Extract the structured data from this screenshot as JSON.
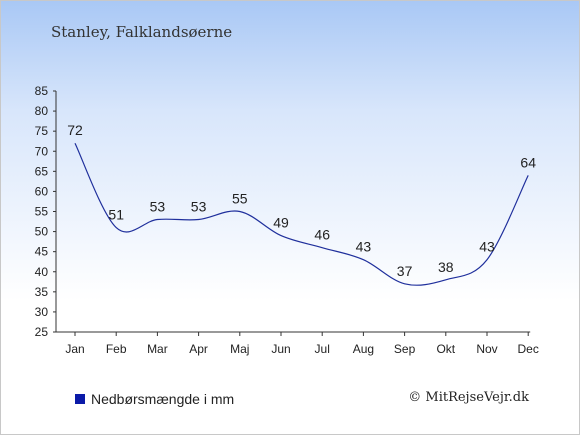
{
  "chart_data": {
    "type": "line",
    "title": "Stanley, Falklandsøerne",
    "categories": [
      "Jan",
      "Feb",
      "Mar",
      "Apr",
      "Maj",
      "Jun",
      "Jul",
      "Aug",
      "Sep",
      "Okt",
      "Nov",
      "Dec"
    ],
    "series": [
      {
        "name": "Nedbørsmængde i mm",
        "values": [
          72,
          51,
          53,
          53,
          55,
          49,
          46,
          43,
          37,
          38,
          43,
          64
        ]
      }
    ],
    "ylim": [
      25,
      85
    ],
    "yticks": [
      25,
      30,
      35,
      40,
      45,
      50,
      55,
      60,
      65,
      70,
      75,
      80,
      85
    ],
    "legend": "bottom-left",
    "grid": false
  },
  "colors": {
    "line": "#1f2f9c",
    "legend_swatch": "#0b1aa8"
  },
  "credit": "© MitRejseVejr.dk"
}
